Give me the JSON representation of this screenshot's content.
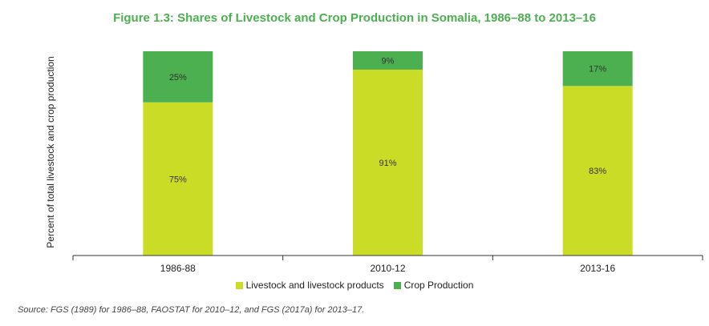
{
  "figure_title": "Figure 1.3: Shares of Livestock and Crop Production in Somalia, 1986–88 to 2013–16",
  "source_note": "Source: FGS (1989) for 1986–88, FAOSTAT for 2010–12, and FGS (2017a) for 2013–17.",
  "colors": {
    "livestock": "#cbdc26",
    "crop": "#4caf50",
    "title": "#4caf50",
    "axis": "#333333"
  },
  "chart_data": {
    "type": "bar",
    "stacked": true,
    "title": "Figure 1.3: Shares of Livestock and Crop Production in Somalia, 1986–88 to 2013–16",
    "xlabel": "",
    "ylabel": "Percent of total livestock and crop production",
    "ylim": [
      0,
      100
    ],
    "categories": [
      "1986-88",
      "2010-12",
      "2013-16"
    ],
    "series": [
      {
        "name": "Livestock and livestock products",
        "values": [
          75,
          91,
          83
        ],
        "labels": [
          "75%",
          "91%",
          "83%"
        ]
      },
      {
        "name": "Crop Production",
        "values": [
          25,
          9,
          17
        ],
        "labels": [
          "25%",
          "9%",
          "17%"
        ]
      }
    ],
    "legend_position": "bottom"
  }
}
